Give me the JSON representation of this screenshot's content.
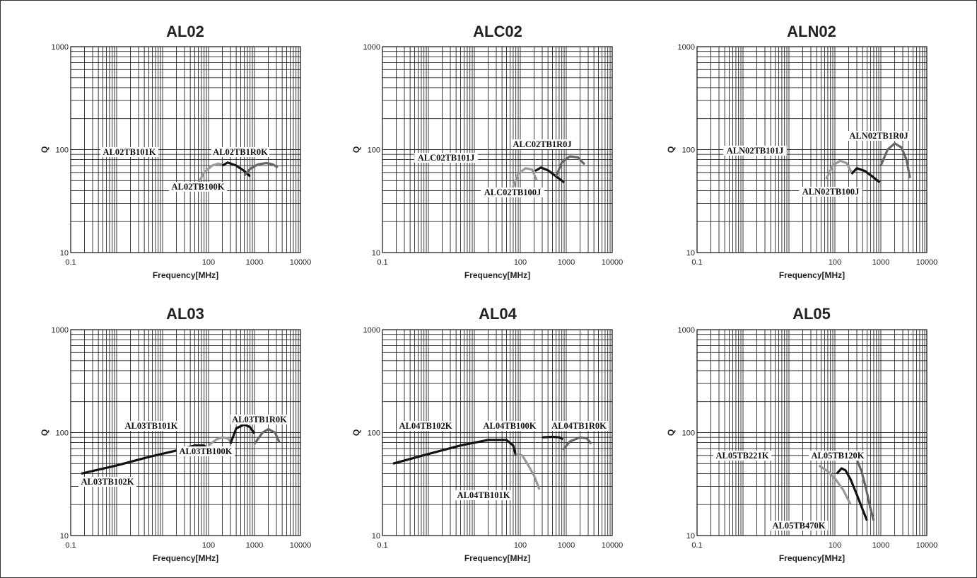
{
  "chart_data": [
    {
      "type": "line",
      "title": "AL02",
      "xlabel": "Frequency[MHz]",
      "ylabel": "Q",
      "xscale": "log",
      "yscale": "log",
      "xlim": [
        0.1,
        10000
      ],
      "ylim": [
        10,
        1000
      ],
      "x_ticks": [
        "0.1",
        "100",
        "1000",
        "10000"
      ],
      "y_ticks": [
        "10",
        "100",
        "1000"
      ],
      "series": [
        {
          "name": "AL02TB101K",
          "color": "#999999",
          "x": [
            55,
            80,
            120,
            160,
            200
          ],
          "y": [
            44,
            60,
            70,
            73,
            72
          ]
        },
        {
          "name": "AL02TB100K",
          "color": "#111111",
          "x": [
            200,
            260,
            400,
            600,
            800
          ],
          "y": [
            70,
            75,
            70,
            62,
            55
          ]
        },
        {
          "name": "AL02TB1R0K",
          "color": "#666666",
          "x": [
            600,
            800,
            1200,
            1800,
            2500,
            3200
          ],
          "y": [
            56,
            65,
            72,
            74,
            72,
            67
          ]
        }
      ]
    },
    {
      "type": "line",
      "title": "ALC02",
      "xlabel": "Frequency[MHz]",
      "ylabel": "Q",
      "xscale": "log",
      "yscale": "log",
      "xlim": [
        0.1,
        10000
      ],
      "ylim": [
        10,
        1000
      ],
      "x_ticks": [
        "0.1",
        "100",
        "1000",
        "10000"
      ],
      "y_ticks": [
        "10",
        "100",
        "1000"
      ],
      "series": [
        {
          "name": "ALC02TB101J",
          "color": "#999999",
          "x": [
            65,
            90,
            130,
            180,
            230
          ],
          "y": [
            40,
            58,
            66,
            64,
            50
          ]
        },
        {
          "name": "ALC02TB100J",
          "color": "#111111",
          "x": [
            210,
            280,
            400,
            600,
            900
          ],
          "y": [
            62,
            67,
            63,
            55,
            48
          ]
        },
        {
          "name": "ALC02TB1R0J",
          "color": "#666666",
          "x": [
            600,
            800,
            1200,
            1800,
            2500
          ],
          "y": [
            55,
            75,
            86,
            84,
            72
          ]
        }
      ]
    },
    {
      "type": "line",
      "title": "ALN02",
      "xlabel": "Frequency[MHz]",
      "ylabel": "Q",
      "xscale": "log",
      "yscale": "log",
      "xlim": [
        0.1,
        10000
      ],
      "ylim": [
        10,
        1000
      ],
      "x_ticks": [
        "0.1",
        "100",
        "1000",
        "10000"
      ],
      "y_ticks": [
        "10",
        "100",
        "1000"
      ],
      "series": [
        {
          "name": "ALN02TB101J",
          "color": "#999999",
          "x": [
            65,
            90,
            130,
            180,
            230
          ],
          "y": [
            52,
            70,
            78,
            74,
            60
          ]
        },
        {
          "name": "ALN02TB100J",
          "color": "#111111",
          "x": [
            230,
            300,
            450,
            650,
            950
          ],
          "y": [
            58,
            66,
            62,
            55,
            48
          ]
        },
        {
          "name": "ALN02TB1R0J",
          "color": "#666666",
          "x": [
            1000,
            1400,
            2000,
            2800,
            3600,
            4300
          ],
          "y": [
            70,
            100,
            115,
            105,
            80,
            53
          ]
        }
      ]
    },
    {
      "type": "line",
      "title": "AL03",
      "xlabel": "Frequency[MHz]",
      "ylabel": "Q",
      "xscale": "log",
      "yscale": "log",
      "xlim": [
        0.1,
        10000
      ],
      "ylim": [
        10,
        1000
      ],
      "x_ticks": [
        "0.1",
        "100",
        "1000",
        "10000"
      ],
      "y_ticks": [
        "10",
        "100",
        "1000"
      ],
      "series": [
        {
          "name": "AL03TB102K",
          "color": "#111111",
          "x": [
            0.17,
            1,
            5,
            20,
            50,
            80,
            110
          ],
          "y": [
            40,
            48,
            58,
            67,
            75,
            75,
            62
          ]
        },
        {
          "name": "AL03TB101K",
          "color": "#999999",
          "x": [
            100,
            150,
            200,
            260,
            300
          ],
          "y": [
            75,
            86,
            90,
            88,
            82
          ]
        },
        {
          "name": "AL03TB100K",
          "color": "#111111",
          "x": [
            300,
            400,
            600,
            800,
            1000
          ],
          "y": [
            78,
            110,
            120,
            113,
            98
          ]
        },
        {
          "name": "AL03TB1R0K",
          "color": "#666666",
          "x": [
            1000,
            1500,
            2000,
            2800,
            3500
          ],
          "y": [
            78,
            100,
            108,
            100,
            80
          ]
        }
      ]
    },
    {
      "type": "line",
      "title": "AL04",
      "xlabel": "Frequency[MHz]",
      "ylabel": "Q",
      "xscale": "log",
      "yscale": "log",
      "xlim": [
        0.1,
        10000
      ],
      "ylim": [
        10,
        1000
      ],
      "x_ticks": [
        "0.1",
        "100",
        "1000",
        "10000"
      ],
      "y_ticks": [
        "10",
        "100",
        "1000"
      ],
      "series": [
        {
          "name": "AL04TB102K",
          "color": "#111111",
          "x": [
            0.17,
            1,
            5,
            20,
            50,
            70,
            80
          ],
          "y": [
            50,
            62,
            75,
            85,
            85,
            75,
            60
          ]
        },
        {
          "name": "AL04TB101K",
          "color": "#999999",
          "x": [
            80,
            110,
            150,
            200,
            260
          ],
          "y": [
            62,
            60,
            48,
            38,
            28
          ]
        },
        {
          "name": "AL04TB100K",
          "color": "#111111",
          "x": [
            300,
            500,
            700,
            850
          ],
          "y": [
            90,
            91,
            90,
            86
          ]
        },
        {
          "name": "AL04TB1R0K",
          "color": "#666666",
          "x": [
            850,
            1200,
            2000,
            2800,
            3500
          ],
          "y": [
            68,
            82,
            90,
            88,
            78
          ]
        }
      ]
    },
    {
      "type": "line",
      "title": "AL05",
      "xlabel": "Frequency[MHz]",
      "ylabel": "Q",
      "xscale": "log",
      "yscale": "log",
      "xlim": [
        0.1,
        10000
      ],
      "ylim": [
        10,
        1000
      ],
      "x_ticks": [
        "0.1",
        "100",
        "1000",
        "10000"
      ],
      "y_ticks": [
        "10",
        "100",
        "1000"
      ],
      "series": [
        {
          "name": "AL05TB221K",
          "color": "#999999",
          "x": [
            45,
            70,
            100,
            150,
            220
          ],
          "y": [
            48,
            42,
            36,
            28,
            20
          ]
        },
        {
          "name": "AL05TB470K",
          "color": "#111111",
          "x": [
            110,
            140,
            170,
            220,
            300,
            400,
            500
          ],
          "y": [
            40,
            45,
            43,
            35,
            25,
            18,
            14
          ]
        },
        {
          "name": "AL05TB120K",
          "color": "#666666",
          "x": [
            250,
            300,
            380,
            480,
            600,
            700
          ],
          "y": [
            57,
            55,
            42,
            28,
            18,
            14
          ]
        }
      ]
    }
  ],
  "labels": {
    "AL02TB101K": "AL02TB101K",
    "AL02TB100K": "AL02TB100K",
    "AL02TB1R0K": "AL02TB1R0K",
    "ALC02TB101J": "ALC02TB101J",
    "ALC02TB100J": "ALC02TB100J",
    "ALC02TB1R0J": "ALC02TB1R0J",
    "ALN02TB101J": "ALN02TB101J",
    "ALN02TB100J": "ALN02TB100J",
    "ALN02TB1R0J": "ALN02TB1R0J",
    "AL03TB102K": "AL03TB102K",
    "AL03TB101K": "AL03TB101K",
    "AL03TB100K": "AL03TB100K",
    "AL03TB1R0K": "AL03TB1R0K",
    "AL04TB102K": "AL04TB102K",
    "AL04TB101K": "AL04TB101K",
    "AL04TB100K": "AL04TB100K",
    "AL04TB1R0K": "AL04TB1R0K",
    "AL05TB221K": "AL05TB221K",
    "AL05TB470K": "AL05TB470K",
    "AL05TB120K": "AL05TB120K"
  }
}
